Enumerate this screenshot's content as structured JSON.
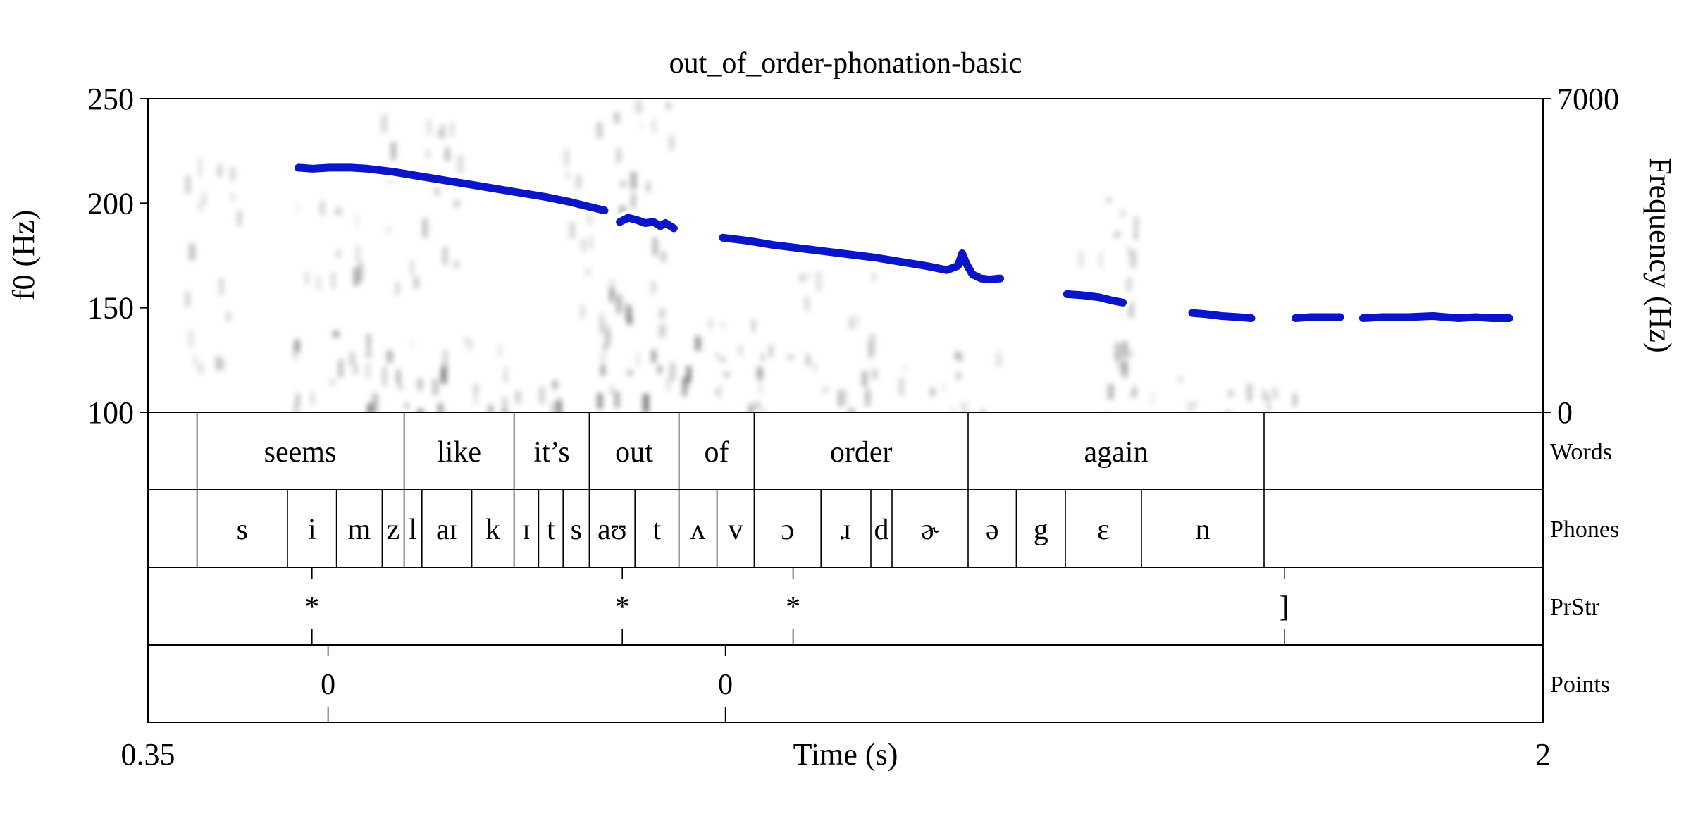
{
  "chart_data": {
    "type": "line",
    "title": "out_of_order-phonation-basic",
    "xlabel": "Time (s)",
    "ylabel_left": "f0 (Hz)",
    "ylabel_right": "Frequency (Hz)",
    "xlim": [
      0.35,
      2
    ],
    "ylim_left": [
      100,
      250
    ],
    "ylim_right": [
      0,
      7000
    ],
    "x_ticks": [
      "0.35",
      "2"
    ],
    "y_ticks_left": [
      {
        "v": 100,
        "t": "100"
      },
      {
        "v": 150,
        "t": "150"
      },
      {
        "v": 200,
        "t": "200"
      },
      {
        "v": 250,
        "t": "250"
      }
    ],
    "y_ticks_right": [
      {
        "v": 0,
        "t": "0"
      },
      {
        "v": 7000,
        "t": "7000"
      }
    ],
    "f0_color": "#0a14c8",
    "f0_segments": [
      [
        [
          0.528,
          217
        ],
        [
          0.545,
          216.5
        ],
        [
          0.565,
          217
        ],
        [
          0.59,
          217
        ],
        [
          0.61,
          216.5
        ],
        [
          0.64,
          215
        ],
        [
          0.67,
          213
        ],
        [
          0.7,
          211
        ],
        [
          0.73,
          209
        ],
        [
          0.76,
          207
        ],
        [
          0.79,
          205
        ],
        [
          0.82,
          203
        ],
        [
          0.85,
          200.5
        ],
        [
          0.87,
          198.5
        ],
        [
          0.89,
          196.5
        ]
      ],
      [
        [
          0.908,
          191
        ],
        [
          0.918,
          193
        ],
        [
          0.928,
          192
        ],
        [
          0.938,
          190.5
        ],
        [
          0.948,
          191
        ],
        [
          0.956,
          189
        ],
        [
          0.962,
          190.5
        ],
        [
          0.972,
          188
        ]
      ],
      [
        [
          1.03,
          183.5
        ],
        [
          1.06,
          182
        ],
        [
          1.09,
          180
        ],
        [
          1.12,
          178.5
        ],
        [
          1.15,
          177
        ],
        [
          1.18,
          175.5
        ],
        [
          1.21,
          174
        ],
        [
          1.24,
          172
        ],
        [
          1.27,
          170
        ],
        [
          1.295,
          168
        ],
        [
          1.308,
          170
        ],
        [
          1.313,
          176
        ],
        [
          1.318,
          171
        ],
        [
          1.325,
          166
        ],
        [
          1.335,
          164
        ],
        [
          1.345,
          163.5
        ],
        [
          1.358,
          164
        ]
      ],
      [
        [
          1.437,
          156.5
        ],
        [
          1.455,
          156
        ],
        [
          1.475,
          155
        ],
        [
          1.49,
          153.5
        ],
        [
          1.503,
          152.5
        ]
      ],
      [
        [
          1.585,
          147.5
        ],
        [
          1.6,
          147
        ],
        [
          1.62,
          146
        ],
        [
          1.64,
          145.5
        ],
        [
          1.655,
          145
        ]
      ],
      [
        [
          1.707,
          145
        ],
        [
          1.725,
          145.5
        ],
        [
          1.745,
          145.5
        ],
        [
          1.76,
          145.5
        ]
      ],
      [
        [
          1.787,
          145
        ],
        [
          1.81,
          145.5
        ],
        [
          1.84,
          145.5
        ],
        [
          1.87,
          146
        ],
        [
          1.9,
          145
        ],
        [
          1.92,
          145.5
        ],
        [
          1.94,
          145
        ],
        [
          1.96,
          145
        ]
      ]
    ],
    "tiers": [
      {
        "name": "Words",
        "boundaries": [
          0.408,
          0.653,
          0.783,
          0.872,
          0.978,
          1.067,
          1.32,
          1.67
        ],
        "labels": [
          {
            "t": 0.53,
            "text": "seems"
          },
          {
            "t": 0.718,
            "text": "like"
          },
          {
            "t": 0.8275,
            "text": "it’s"
          },
          {
            "t": 0.925,
            "text": "out"
          },
          {
            "t": 1.0225,
            "text": "of"
          },
          {
            "t": 1.1935,
            "text": "order"
          },
          {
            "t": 1.495,
            "text": "again"
          }
        ]
      },
      {
        "name": "Phones",
        "boundaries": [
          0.408,
          0.515,
          0.573,
          0.627,
          0.653,
          0.674,
          0.733,
          0.783,
          0.812,
          0.841,
          0.872,
          0.926,
          0.978,
          1.023,
          1.067,
          1.146,
          1.205,
          1.23,
          1.32,
          1.377,
          1.435,
          1.525,
          1.67
        ],
        "labels": [
          {
            "t": 0.4615,
            "text": "s"
          },
          {
            "t": 0.544,
            "text": "i"
          },
          {
            "t": 0.6,
            "text": "m"
          },
          {
            "t": 0.64,
            "text": "z"
          },
          {
            "t": 0.6635,
            "text": "l"
          },
          {
            "t": 0.7035,
            "text": "aɪ"
          },
          {
            "t": 0.758,
            "text": "k"
          },
          {
            "t": 0.7975,
            "text": "ɪ"
          },
          {
            "t": 0.8265,
            "text": "t"
          },
          {
            "t": 0.8565,
            "text": "s"
          },
          {
            "t": 0.899,
            "text": "aʊ"
          },
          {
            "t": 0.952,
            "text": "t"
          },
          {
            "t": 1.0005,
            "text": "ʌ"
          },
          {
            "t": 1.045,
            "text": "v"
          },
          {
            "t": 1.1065,
            "text": "ɔ"
          },
          {
            "t": 1.1755,
            "text": "ɹ"
          },
          {
            "t": 1.2175,
            "text": "d"
          },
          {
            "t": 1.275,
            "text": "ɚ"
          },
          {
            "t": 1.3485,
            "text": "ə"
          },
          {
            "t": 1.406,
            "text": "g"
          },
          {
            "t": 1.48,
            "text": "ɛ"
          },
          {
            "t": 1.5975,
            "text": "n"
          }
        ]
      },
      {
        "name": "PrStr",
        "points": [
          {
            "t": 0.544,
            "text": "*"
          },
          {
            "t": 0.911,
            "text": "*"
          },
          {
            "t": 1.113,
            "text": "*"
          },
          {
            "t": 1.694,
            "text": "]"
          }
        ]
      },
      {
        "name": "Points",
        "points": [
          {
            "t": 0.563,
            "text": "0"
          },
          {
            "t": 1.033,
            "text": "0"
          }
        ]
      }
    ]
  }
}
